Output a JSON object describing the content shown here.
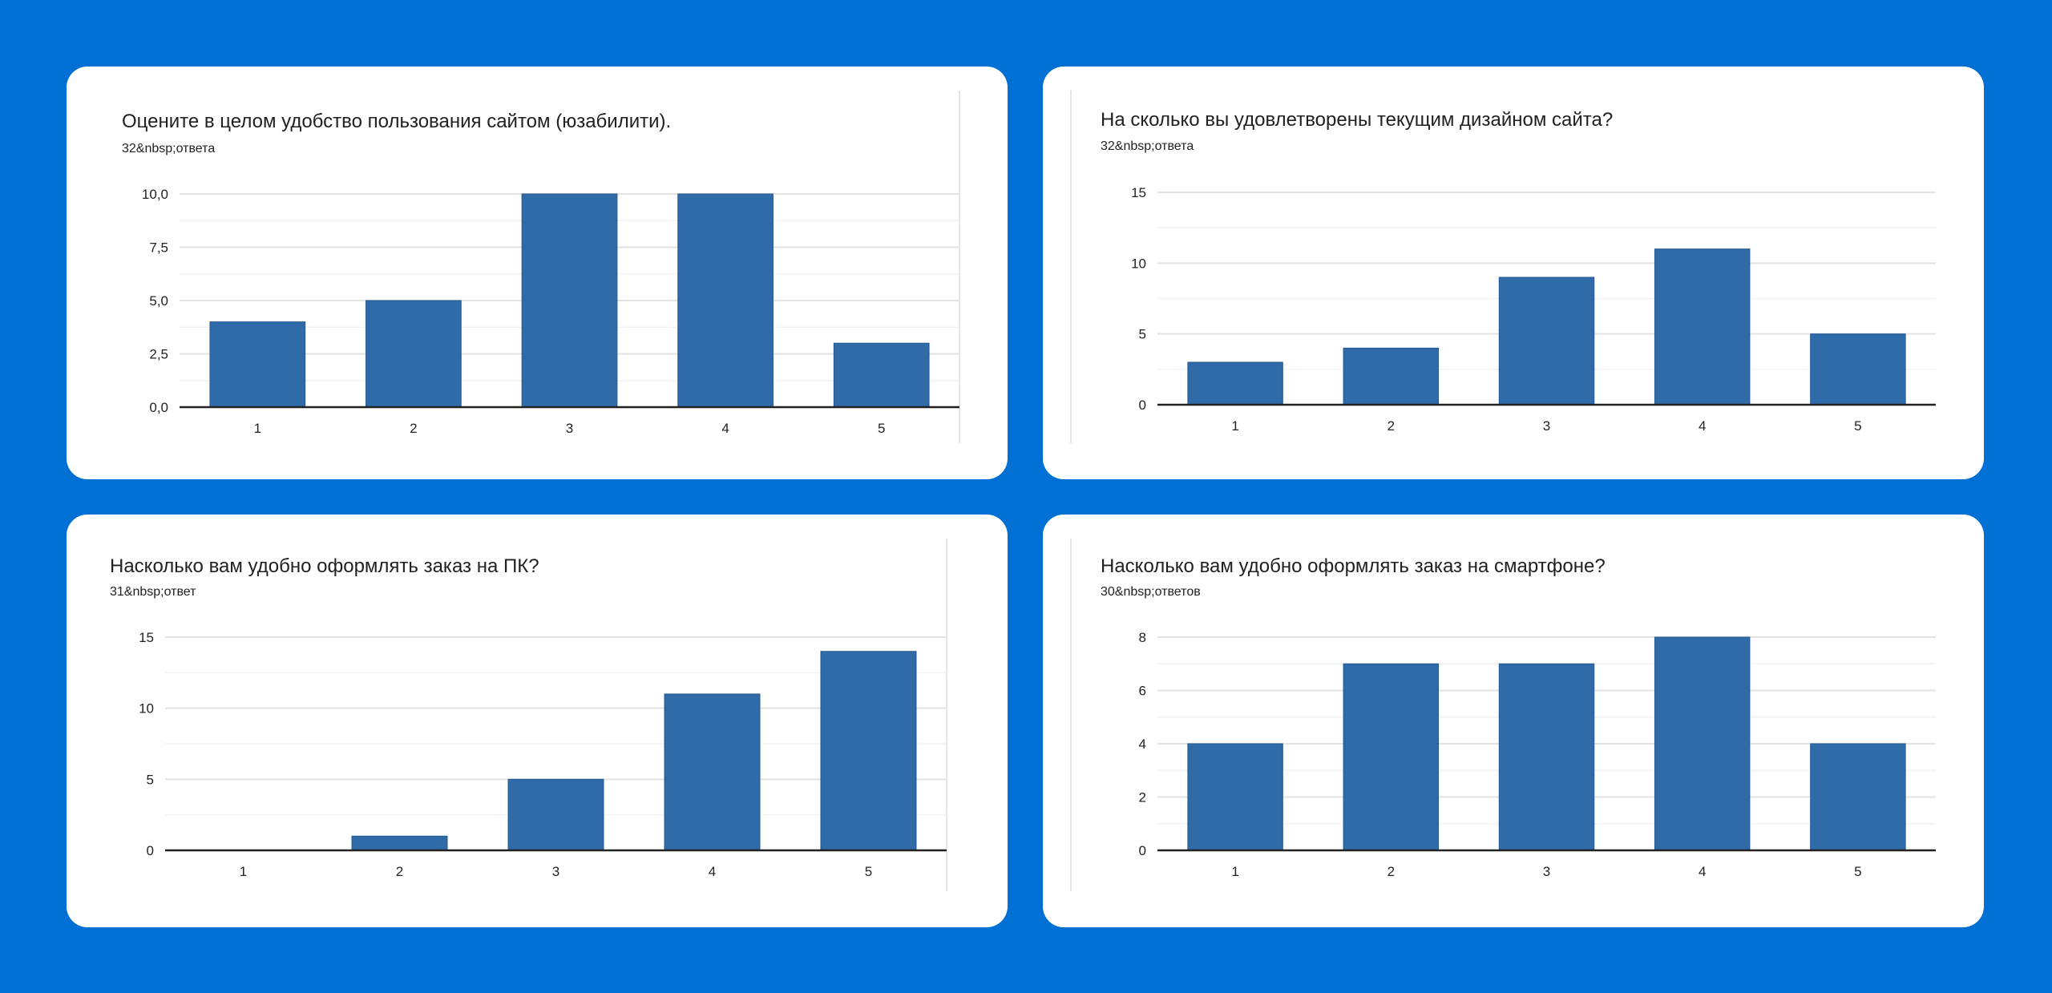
{
  "colors": {
    "background": "#0070d4",
    "bar": "#2f6ba8"
  },
  "chart_data": [
    {
      "type": "bar",
      "title": "Оцените в целом удобство пользования сайтом (юзабилити).",
      "subtitle": "32&nbsp;ответа",
      "categories": [
        "1",
        "2",
        "3",
        "4",
        "5"
      ],
      "values": [
        4,
        5,
        10,
        10,
        3
      ],
      "ylim": [
        0,
        10
      ],
      "yticks": [
        "0,0",
        "2,5",
        "5,0",
        "7,5",
        "10,0"
      ],
      "xlabel": "",
      "ylabel": ""
    },
    {
      "type": "bar",
      "title": "На сколько вы удовлетворены текущим дизайном сайта?",
      "subtitle": "32&nbsp;ответа",
      "categories": [
        "1",
        "2",
        "3",
        "4",
        "5"
      ],
      "values": [
        3,
        4,
        9,
        11,
        5
      ],
      "ylim": [
        0,
        15
      ],
      "yticks": [
        "0",
        "5",
        "10",
        "15"
      ],
      "xlabel": "",
      "ylabel": ""
    },
    {
      "type": "bar",
      "title": "Насколько вам удобно оформлять заказ на ПК?",
      "subtitle": "31&nbsp;ответ",
      "categories": [
        "1",
        "2",
        "3",
        "4",
        "5"
      ],
      "values": [
        0,
        1,
        5,
        11,
        14
      ],
      "ylim": [
        0,
        15
      ],
      "yticks": [
        "0",
        "5",
        "10",
        "15"
      ],
      "xlabel": "",
      "ylabel": ""
    },
    {
      "type": "bar",
      "title": "Насколько вам удобно оформлять заказ на смартфоне?",
      "subtitle": "30&nbsp;ответов",
      "categories": [
        "1",
        "2",
        "3",
        "4",
        "5"
      ],
      "values": [
        4,
        7,
        7,
        8,
        4
      ],
      "ylim": [
        0,
        8
      ],
      "yticks": [
        "0",
        "2",
        "4",
        "6",
        "8"
      ],
      "xlabel": "",
      "ylabel": ""
    }
  ]
}
